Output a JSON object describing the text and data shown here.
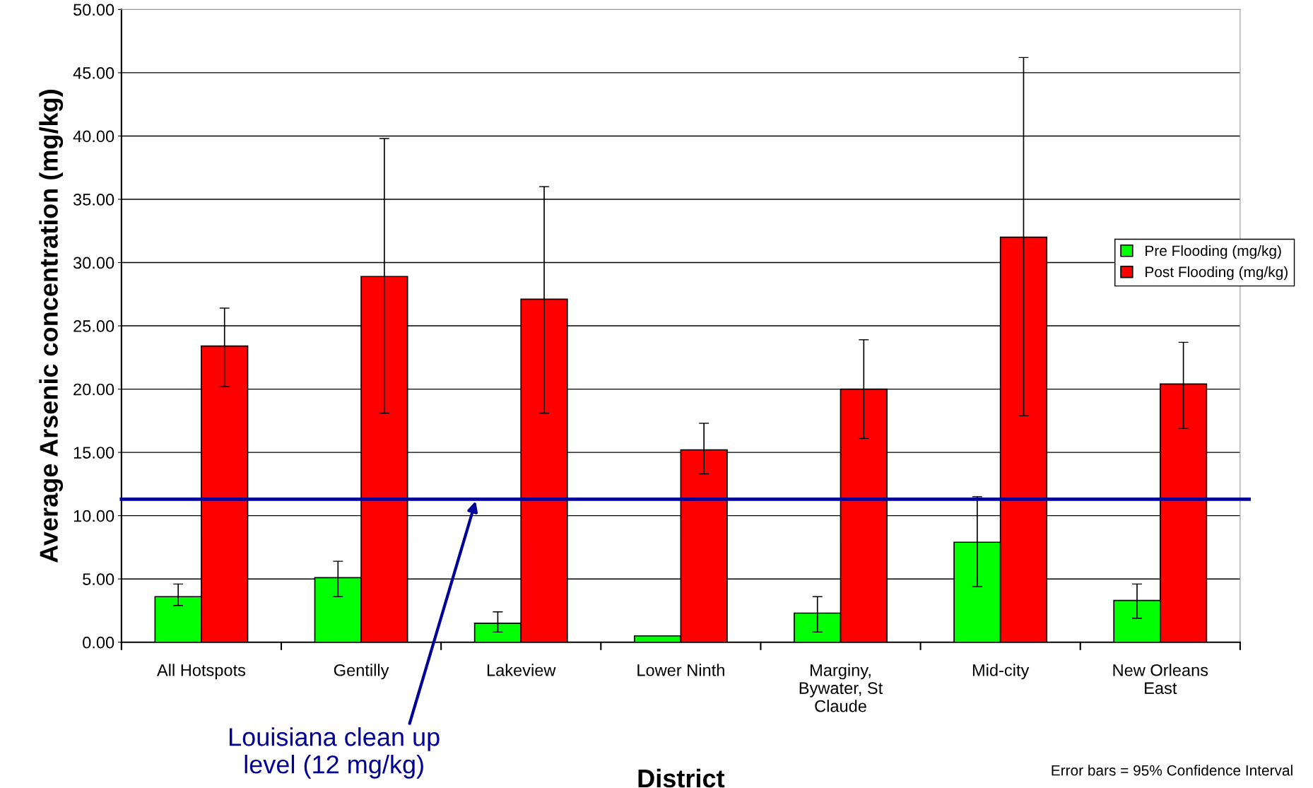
{
  "chart_data": {
    "type": "bar",
    "xlabel": "District",
    "ylabel": "Average Arsenic concentration (mg/kg)",
    "categories": [
      "All Hotspots",
      "Gentilly",
      "Lakeview",
      "Lower Ninth",
      "Marginy,\nBywater, St\nClaude",
      "Mid-city",
      "New Orleans\nEast"
    ],
    "series": [
      {
        "name": "Pre Flooding (mg/kg)",
        "color": "#00ff00",
        "values": [
          3.6,
          5.1,
          1.5,
          0.5,
          2.3,
          7.9,
          3.3
        ],
        "errors": [
          [
            2.9,
            4.6
          ],
          [
            3.6,
            6.4
          ],
          [
            0.8,
            2.4
          ],
          null,
          [
            0.8,
            3.6
          ],
          [
            4.4,
            11.5
          ],
          [
            1.9,
            4.6
          ]
        ]
      },
      {
        "name": "Post Flooding (mg/kg)",
        "color": "#ff0000",
        "values": [
          23.4,
          28.9,
          27.1,
          15.2,
          20.0,
          32.0,
          20.4
        ],
        "errors": [
          [
            20.2,
            26.4
          ],
          [
            18.1,
            39.8
          ],
          [
            18.1,
            36.0
          ],
          [
            13.3,
            17.3
          ],
          [
            16.1,
            23.9
          ],
          [
            17.9,
            46.2
          ],
          [
            16.9,
            23.7
          ]
        ]
      }
    ],
    "ylim": [
      0,
      50
    ],
    "yticks": [
      {
        "value": 0,
        "label": "0.00"
      },
      {
        "value": 5,
        "label": "5.00"
      },
      {
        "value": 10,
        "label": "10.00"
      },
      {
        "value": 15,
        "label": "15.00"
      },
      {
        "value": 20,
        "label": "20.00"
      },
      {
        "value": 25,
        "label": "25.00"
      },
      {
        "value": 30,
        "label": "30.00"
      },
      {
        "value": 35,
        "label": "35.00"
      },
      {
        "value": 40,
        "label": "40.00"
      },
      {
        "value": 45,
        "label": "45.00"
      },
      {
        "value": 50,
        "label": "50.00"
      }
    ],
    "grid": "y",
    "legend": "right",
    "ref_lines": [
      {
        "axis": "y",
        "value": 11.3,
        "label": "Louisiana clean up\nlevel (12 mg/kg)",
        "color": "#000099"
      }
    ],
    "annotations": [
      "Error bars = 95% Confidence Interval"
    ]
  }
}
